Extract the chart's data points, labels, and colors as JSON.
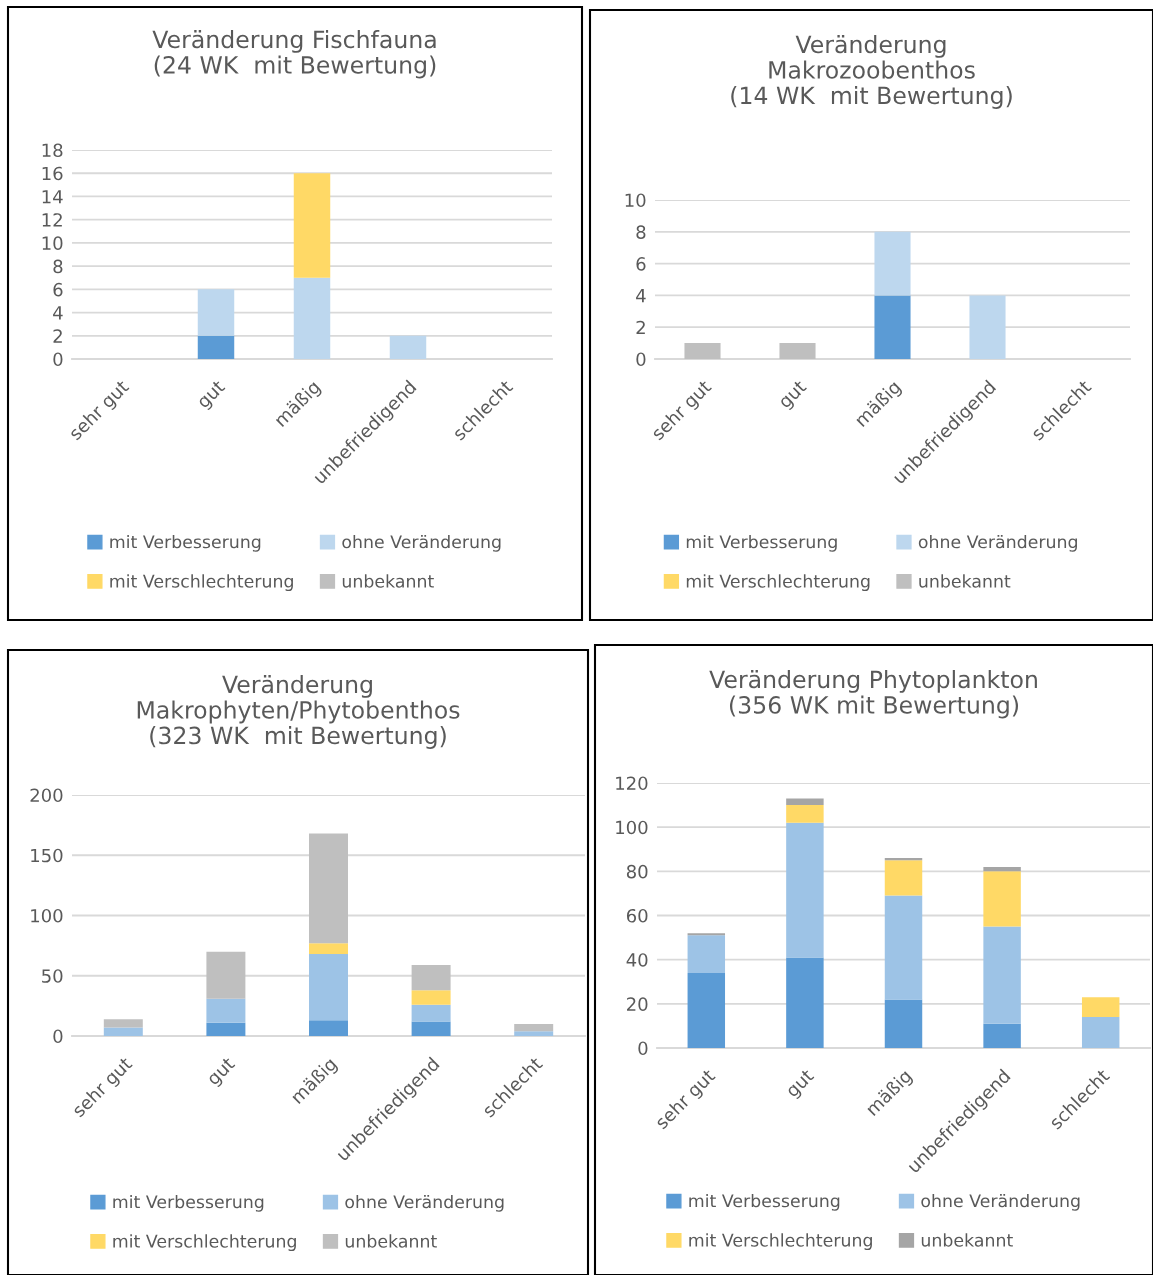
{
  "chart_data": [
    {
      "type": "bar",
      "title": "Veränderung Fischfauna\n(24 WK  mit Bewertung)",
      "categories": [
        "sehr gut",
        "gut",
        "mäßig",
        "unbefriedigend",
        "schlecht"
      ],
      "stacked": true,
      "ylim": [
        0,
        18
      ],
      "yticks": [
        0,
        2,
        4,
        6,
        8,
        10,
        12,
        14,
        16,
        18
      ],
      "grid": "y",
      "legend": "bottom",
      "series": [
        {
          "name": "mit Verbesserung",
          "color": "#5b9bd5",
          "values": [
            0,
            2,
            0,
            0,
            0
          ]
        },
        {
          "name": "ohne Veränderung",
          "color": "#bdd7ee",
          "values": [
            0,
            4,
            7,
            2,
            0
          ]
        },
        {
          "name": "mit Verschlechterung",
          "color": "#ffd966",
          "values": [
            0,
            0,
            9,
            0,
            0
          ]
        },
        {
          "name": "unbekannt",
          "color": "#bfbfbf",
          "values": [
            0,
            0,
            0,
            0,
            0
          ]
        }
      ]
    },
    {
      "type": "bar",
      "title": "Veränderung\nMakrozoobenthos\n(14 WK  mit Bewertung)",
      "categories": [
        "sehr gut",
        "gut",
        "mäßig",
        "unbefriedigend",
        "schlecht"
      ],
      "stacked": true,
      "ylim": [
        0,
        10
      ],
      "yticks": [
        0,
        2,
        4,
        6,
        8,
        10
      ],
      "grid": "y",
      "legend": "bottom",
      "series": [
        {
          "name": "mit Verbesserung",
          "color": "#5b9bd5",
          "values": [
            0,
            0,
            4,
            0,
            0
          ]
        },
        {
          "name": "ohne Veränderung",
          "color": "#bdd7ee",
          "values": [
            0,
            0,
            4,
            4,
            0
          ]
        },
        {
          "name": "mit Verschlechterung",
          "color": "#ffd966",
          "values": [
            0,
            0,
            0,
            0,
            0
          ]
        },
        {
          "name": "unbekannt",
          "color": "#bfbfbf",
          "values": [
            1,
            1,
            0,
            0,
            0
          ]
        }
      ]
    },
    {
      "type": "bar",
      "title": "Veränderung\nMakrophyten/Phytobenthos\n(323 WK  mit Bewertung)",
      "categories": [
        "sehr gut",
        "gut",
        "mäßig",
        "unbefriedigend",
        "schlecht"
      ],
      "stacked": true,
      "ylim": [
        0,
        200
      ],
      "yticks": [
        0,
        50,
        100,
        150,
        200
      ],
      "grid": "y",
      "legend": "bottom",
      "series": [
        {
          "name": "mit Verbesserung",
          "color": "#5b9bd5",
          "values": [
            0,
            11,
            13,
            12,
            0
          ]
        },
        {
          "name": "ohne Veränderung",
          "color": "#9dc3e6",
          "values": [
            7,
            20,
            55,
            14,
            4
          ]
        },
        {
          "name": "mit Verschlechterung",
          "color": "#ffd966",
          "values": [
            0,
            0,
            9,
            12,
            0
          ]
        },
        {
          "name": "unbekannt",
          "color": "#bfbfbf",
          "values": [
            7,
            39,
            91,
            21,
            6
          ]
        }
      ]
    },
    {
      "type": "bar",
      "title": "Veränderung Phytoplankton\n(356 WK mit Bewertung)",
      "categories": [
        "sehr gut",
        "gut",
        "mäßig",
        "unbefriedigend",
        "schlecht"
      ],
      "stacked": true,
      "ylim": [
        0,
        120
      ],
      "yticks": [
        0,
        20,
        40,
        60,
        80,
        100,
        120
      ],
      "grid": "y",
      "legend": "bottom",
      "series": [
        {
          "name": "mit Verbesserung",
          "color": "#5b9bd5",
          "values": [
            34,
            41,
            22,
            11,
            0
          ]
        },
        {
          "name": "ohne Veränderung",
          "color": "#9dc3e6",
          "values": [
            17,
            61,
            47,
            44,
            14
          ]
        },
        {
          "name": "mit Verschlechterung",
          "color": "#ffd966",
          "values": [
            0,
            8,
            16,
            25,
            9
          ]
        },
        {
          "name": "unbekannt",
          "color": "#a5a5a5",
          "values": [
            1,
            3,
            1,
            2,
            0
          ]
        }
      ]
    }
  ]
}
